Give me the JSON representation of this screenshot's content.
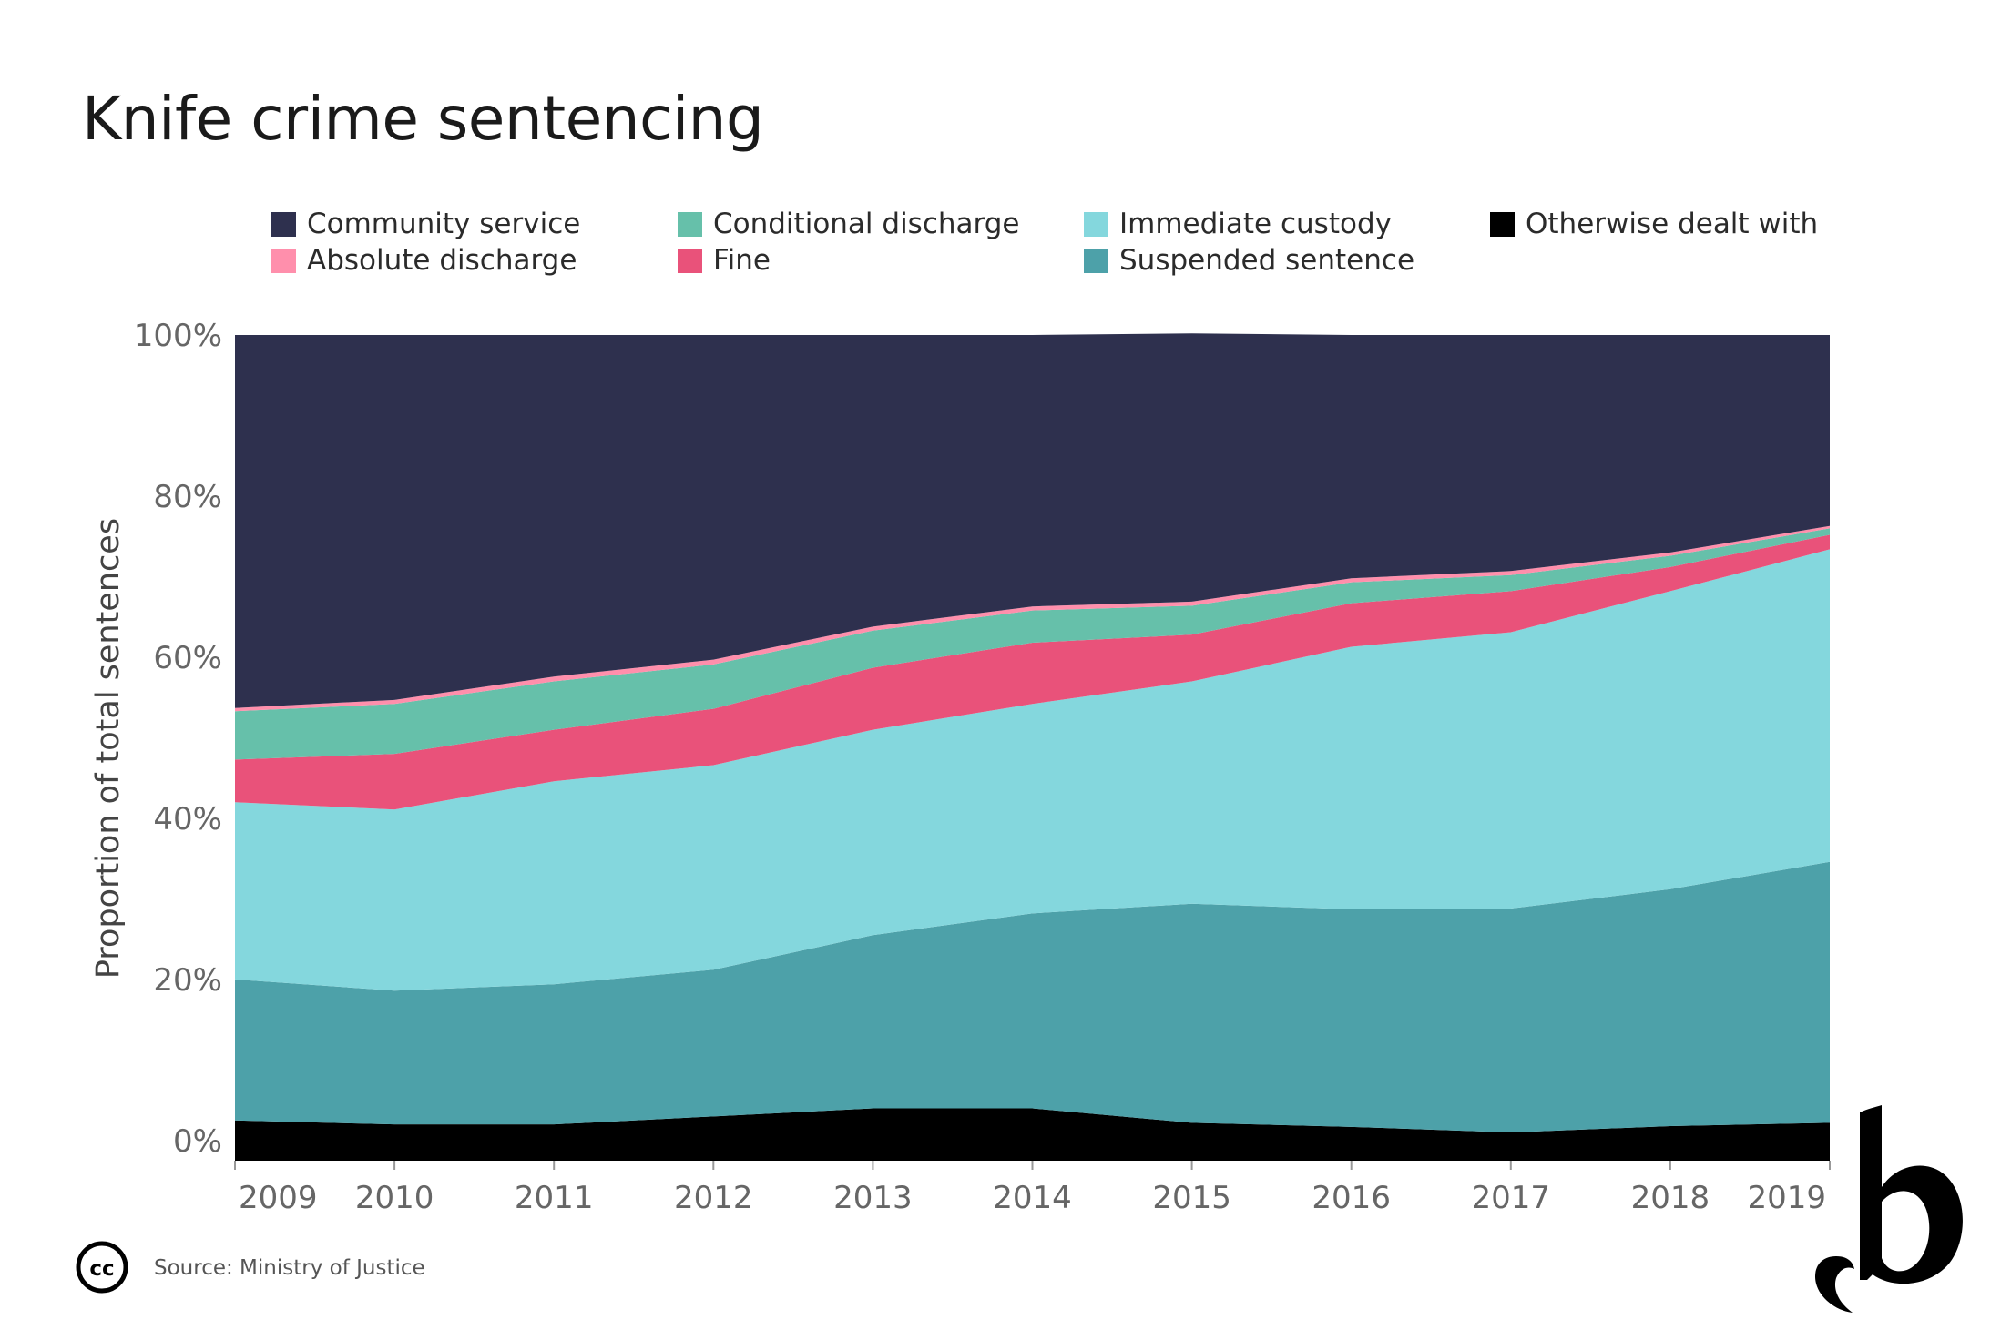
{
  "title": "Knife crime sentencing",
  "source": "Source: Ministry of Justice",
  "icons": {
    "license": "creative-commons-icon",
    "logo": "publisher-logo-icon"
  },
  "legend": [
    {
      "label": "Community service",
      "color": "#2e304e"
    },
    {
      "label": "Conditional discharge",
      "color": "#66c0aa"
    },
    {
      "label": "Immediate custody",
      "color": "#84d7dd"
    },
    {
      "label": "Otherwise dealt with",
      "color": "#000000"
    },
    {
      "label": "Absolute discharge",
      "color": "#ff8fac"
    },
    {
      "label": "Fine",
      "color": "#e9527a"
    },
    {
      "label": "Suspended sentence",
      "color": "#4da1a9"
    }
  ],
  "chart_data": {
    "type": "area",
    "stacked": true,
    "x": [
      "2009",
      "2010",
      "2011",
      "2012",
      "2013",
      "2014",
      "2015",
      "2016",
      "2017",
      "2018",
      "2019"
    ],
    "ylabel": "Proportion of total sentences",
    "yticks": [
      "0%",
      "20%",
      "40%",
      "60%",
      "80%",
      "100%"
    ],
    "ylim": [
      -2.5,
      100
    ],
    "legend_position": "top",
    "series": [
      {
        "name": "Otherwise dealt with",
        "color": "#000000",
        "values": [
          2.5,
          2.0,
          2.0,
          3.0,
          4.0,
          4.0,
          2.2,
          1.7,
          1.0,
          1.8,
          2.2
        ]
      },
      {
        "name": "Suspended sentence",
        "color": "#4da1a9",
        "values": [
          17.5,
          16.6,
          17.4,
          18.2,
          21.5,
          24.2,
          27.2,
          27.0,
          27.8,
          29.4,
          32.4
        ]
      },
      {
        "name": "Immediate custody",
        "color": "#84d7dd",
        "values": [
          22.0,
          22.5,
          25.2,
          25.4,
          25.5,
          26.0,
          27.6,
          32.6,
          34.3,
          37.0,
          38.8
        ]
      },
      {
        "name": "Fine",
        "color": "#e9527a",
        "values": [
          5.3,
          6.9,
          6.4,
          7.0,
          7.7,
          7.6,
          5.8,
          5.4,
          5.1,
          3.0,
          1.8
        ]
      },
      {
        "name": "Conditional discharge",
        "color": "#66c0aa",
        "values": [
          6.0,
          6.2,
          6.0,
          5.5,
          4.6,
          4.0,
          3.6,
          2.6,
          2.0,
          1.4,
          0.8
        ]
      },
      {
        "name": "Absolute discharge",
        "color": "#ff8fac",
        "values": [
          0.4,
          0.5,
          0.6,
          0.6,
          0.5,
          0.5,
          0.5,
          0.5,
          0.5,
          0.4,
          0.3
        ]
      },
      {
        "name": "Community service",
        "color": "#2e304e",
        "values": [
          46.3,
          45.3,
          42.4,
          40.3,
          36.2,
          33.7,
          33.3,
          30.2,
          29.3,
          27.0,
          23.7
        ]
      }
    ]
  }
}
